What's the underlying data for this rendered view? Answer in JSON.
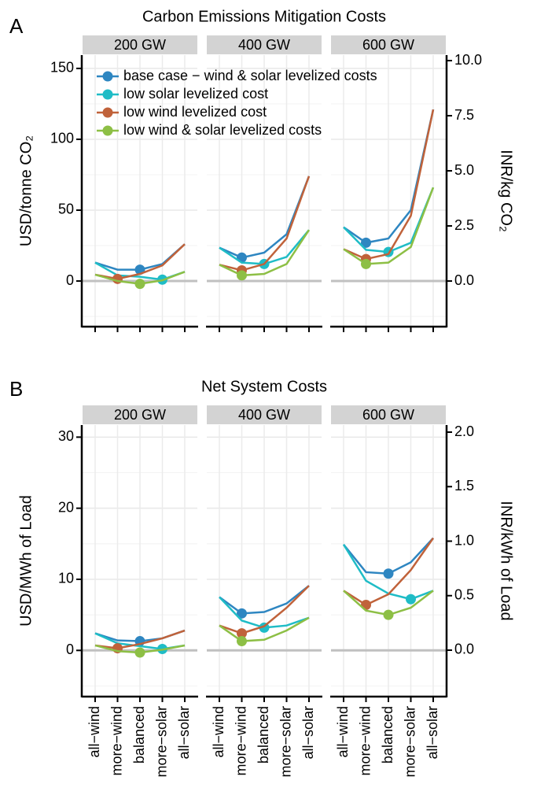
{
  "chart_data": [
    {
      "type": "line",
      "panel_label": "A",
      "title": "Carbon Emissions Mitigation Costs",
      "y_label": "USD/tonne CO₂",
      "y2_label": "INR/kg CO₂",
      "facets": [
        "200 GW",
        "400 GW",
        "600 GW"
      ],
      "ylim": [
        -32.2,
        159.4
      ],
      "yticks": [
        0,
        50,
        100,
        150
      ],
      "y2lim": [
        -2.07,
        10.25
      ],
      "y2ticks": [
        {
          "value": 0,
          "label": "0.0"
        },
        {
          "value": 2.5,
          "label": "2.5"
        },
        {
          "value": 5,
          "label": "5.0"
        },
        {
          "value": 7.5,
          "label": "7.5"
        },
        {
          "value": 10,
          "label": "10.0"
        }
      ],
      "hline": 0,
      "grid": true,
      "series": [
        {
          "name": "base case − wind & solar levelized costs",
          "color": "#2e86c1",
          "values": [
            [
              13,
              8,
              8,
              12,
              26
            ],
            [
              23.5,
              16.5,
              20,
              33,
              74
            ],
            [
              38,
              27,
              30,
              50,
              121
            ]
          ],
          "markers": [
            2,
            1,
            1
          ]
        },
        {
          "name": "low solar levelized cost",
          "color": "#1fbcc6",
          "values": [
            [
              13,
              4,
              3,
              1,
              6.5
            ],
            [
              23.5,
              13,
              12,
              17,
              36
            ],
            [
              38,
              22,
              20.5,
              27,
              66
            ]
          ],
          "markers": [
            3,
            2,
            2
          ]
        },
        {
          "name": "low wind levelized cost",
          "color": "#c0623a",
          "values": [
            [
              4.5,
              1.5,
              5,
              11,
              26
            ],
            [
              11.5,
              7.5,
              12,
              30,
              74
            ],
            [
              22.5,
              15.5,
              19,
              46,
              121
            ]
          ],
          "markers": [
            1,
            1,
            1
          ]
        },
        {
          "name": "low wind & solar levelized costs",
          "color": "#8dbf45",
          "values": [
            [
              4.5,
              0,
              -2,
              0.5,
              6.5
            ],
            [
              11.5,
              4,
              5,
              12,
              36
            ],
            [
              22.5,
              12,
              13,
              24,
              66
            ]
          ],
          "markers": [
            2,
            1,
            1
          ]
        }
      ]
    },
    {
      "type": "line",
      "panel_label": "B",
      "title": "Net System Costs",
      "y_label": "USD/MWh of Load",
      "y2_label": "INR/kWh of Load",
      "facets": [
        "200 GW",
        "400 GW",
        "600 GW"
      ],
      "categories": [
        "all−wind",
        "more−wind",
        "balanced",
        "more−solar",
        "all−solar"
      ],
      "ylim": [
        -6.5,
        31.7
      ],
      "yticks": [
        0,
        10,
        20,
        30
      ],
      "y2lim": [
        -0.426,
        2.065
      ],
      "y2ticks": [
        {
          "value": 0,
          "label": "0.0"
        },
        {
          "value": 0.5,
          "label": "0.5"
        },
        {
          "value": 1,
          "label": "1.0"
        },
        {
          "value": 1.5,
          "label": "1.5"
        },
        {
          "value": 2,
          "label": "2.0"
        }
      ],
      "hline": 0,
      "grid": true,
      "series": [
        {
          "color": "#2e86c1",
          "values": [
            [
              2.4,
              1.4,
              1.3,
              1.7,
              2.8
            ],
            [
              7.5,
              5.2,
              5.4,
              6.6,
              9.1
            ],
            [
              14.9,
              11,
              10.8,
              12.4,
              15.8
            ]
          ],
          "markers": [
            2,
            1,
            2
          ]
        },
        {
          "color": "#1fbcc6",
          "values": [
            [
              2.4,
              1,
              0.6,
              0.2,
              0.7
            ],
            [
              7.5,
              4.2,
              3.2,
              3.5,
              4.6
            ],
            [
              14.9,
              9.8,
              8,
              7.2,
              8.4
            ]
          ],
          "markers": [
            3,
            2,
            3
          ]
        },
        {
          "color": "#c0623a",
          "values": [
            [
              0.7,
              0.3,
              0.9,
              1.7,
              2.8
            ],
            [
              3.5,
              2.4,
              3.4,
              6,
              9.1
            ],
            [
              8.4,
              6.4,
              7.9,
              11.3,
              15.8
            ]
          ],
          "markers": [
            1,
            1,
            1
          ]
        },
        {
          "color": "#8dbf45",
          "values": [
            [
              0.7,
              -0.1,
              -0.3,
              0.1,
              0.7
            ],
            [
              3.5,
              1.3,
              1.5,
              2.8,
              4.6
            ],
            [
              8.4,
              5.6,
              5,
              6,
              8.4
            ]
          ],
          "markers": [
            2,
            1,
            2
          ]
        }
      ]
    }
  ]
}
